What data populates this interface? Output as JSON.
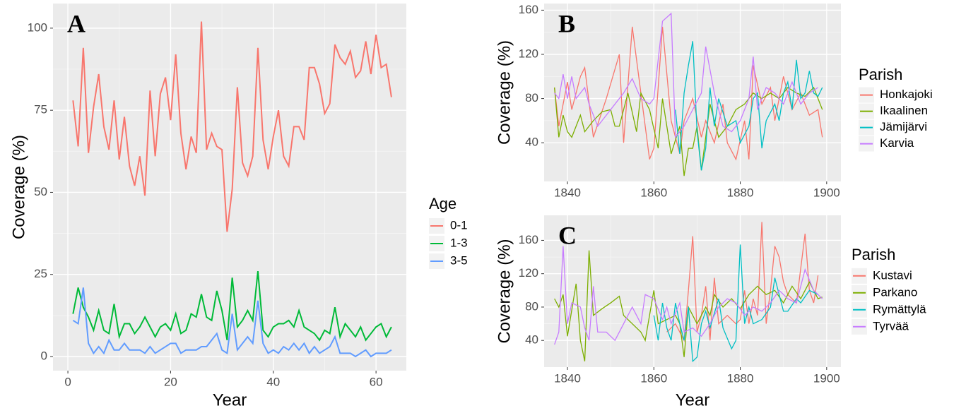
{
  "chart_data": [
    {
      "type": "line",
      "label": "A",
      "x_label": "Year",
      "y_label": "Coverage (%)",
      "legend_title": "Age",
      "grid": true,
      "xlim": [
        -2.9,
        65.9
      ],
      "ylim": [
        -4.3,
        107.5
      ],
      "xticks": [
        0,
        20,
        40,
        60
      ],
      "yticks": [
        0,
        25,
        50,
        75,
        100
      ],
      "x": [
        1,
        2,
        3,
        4,
        5,
        6,
        7,
        8,
        9,
        10,
        11,
        12,
        13,
        14,
        15,
        16,
        17,
        18,
        19,
        20,
        21,
        22,
        23,
        24,
        25,
        26,
        27,
        28,
        29,
        30,
        31,
        32,
        33,
        34,
        35,
        36,
        37,
        38,
        39,
        40,
        41,
        42,
        43,
        44,
        45,
        46,
        47,
        48,
        49,
        50,
        51,
        52,
        53,
        54,
        55,
        56,
        57,
        58,
        59,
        60,
        61,
        62,
        63
      ],
      "series": [
        {
          "name": "0-1",
          "color": "#F8766D",
          "values": [
            78,
            64,
            94,
            62,
            76,
            86,
            70,
            63,
            78,
            60,
            73,
            58,
            52,
            61,
            49,
            81,
            61,
            80,
            85,
            72,
            92,
            68,
            57,
            67,
            62,
            102,
            63,
            68,
            64,
            63,
            38,
            51,
            82,
            59,
            55,
            61,
            94,
            66,
            57,
            67,
            75,
            61,
            58,
            70,
            70,
            66,
            88,
            88,
            83,
            74,
            77,
            95,
            91,
            89,
            93,
            85,
            87,
            96,
            86,
            98,
            88,
            89,
            79
          ]
        },
        {
          "name": "1-3",
          "color": "#00BA38",
          "values": [
            13,
            21,
            15,
            12,
            8,
            14,
            8,
            7,
            16,
            6,
            10,
            10,
            7,
            9,
            12,
            9,
            6,
            9,
            10,
            8,
            13,
            7,
            8,
            13,
            12,
            19,
            12,
            11,
            20,
            14,
            5,
            24,
            9,
            11,
            14,
            11,
            26,
            8,
            6,
            9,
            10,
            10,
            11,
            9,
            14,
            9,
            8,
            7,
            5,
            8,
            7,
            15,
            6,
            10,
            8,
            6,
            9,
            5,
            7,
            9,
            10,
            6,
            9
          ]
        },
        {
          "name": "3-5",
          "color": "#619CFF",
          "values": [
            11,
            10,
            21,
            4,
            1,
            3,
            1,
            5,
            2,
            2,
            4,
            2,
            2,
            2,
            1,
            3,
            1,
            2,
            3,
            4,
            4,
            1,
            2,
            2,
            2,
            3,
            3,
            5,
            7,
            2,
            1,
            13,
            2,
            4,
            6,
            4,
            17,
            4,
            1,
            2,
            1,
            3,
            2,
            4,
            2,
            4,
            1,
            3,
            1,
            2,
            3,
            6,
            1,
            1,
            1,
            0,
            1,
            2,
            0,
            1,
            1,
            1,
            2
          ]
        }
      ]
    },
    {
      "type": "line",
      "label": "B",
      "y_label": "Coverage (%)",
      "legend_title": "Parish",
      "grid": true,
      "xlim": [
        1834.6,
        1903.3
      ],
      "ylim": [
        5,
        166
      ],
      "xticks": [
        1840,
        1860,
        1880,
        1900
      ],
      "yticks": [
        40,
        80,
        120,
        160
      ],
      "series": [
        {
          "name": "Honkajoki",
          "color": "#F8766D",
          "x": [
            1837,
            1838,
            1840,
            1841,
            1843,
            1844,
            1846,
            1849,
            1852,
            1853,
            1855,
            1857,
            1859,
            1860,
            1862,
            1864,
            1866,
            1867,
            1869,
            1871,
            1872,
            1874,
            1876,
            1877,
            1879,
            1881,
            1882,
            1883,
            1885,
            1887,
            1888,
            1890,
            1892,
            1894,
            1896,
            1898,
            1899
          ],
          "values": [
            90,
            55,
            95,
            70,
            100,
            108,
            45,
            80,
            120,
            40,
            145,
            85,
            25,
            35,
            145,
            60,
            30,
            60,
            80,
            45,
            60,
            40,
            75,
            40,
            25,
            60,
            25,
            110,
            75,
            90,
            60,
            100,
            70,
            85,
            65,
            70,
            45
          ]
        },
        {
          "name": "Ikaalinen",
          "color": "#7CAE00",
          "x": [
            1837,
            1838,
            1839,
            1840,
            1841,
            1843,
            1844,
            1846,
            1848,
            1850,
            1851,
            1852,
            1854,
            1856,
            1857,
            1859,
            1861,
            1862,
            1864,
            1866,
            1867,
            1868,
            1869,
            1870,
            1871,
            1873,
            1875,
            1877,
            1879,
            1881,
            1883,
            1885,
            1887,
            1889,
            1891,
            1893,
            1895,
            1897,
            1899
          ],
          "values": [
            90,
            45,
            65,
            50,
            45,
            65,
            50,
            60,
            68,
            70,
            55,
            55,
            85,
            50,
            85,
            70,
            35,
            80,
            30,
            55,
            10,
            35,
            35,
            55,
            15,
            75,
            45,
            55,
            70,
            75,
            85,
            80,
            85,
            80,
            90,
            85,
            82,
            90,
            70
          ]
        },
        {
          "name": "Jämijärvi",
          "color": "#00BFC4",
          "x": [
            1865,
            1866,
            1867,
            1868,
            1869,
            1870,
            1871,
            1872,
            1873,
            1874,
            1875,
            1877,
            1879,
            1880,
            1882,
            1883,
            1884,
            1885,
            1886,
            1888,
            1889,
            1890,
            1891,
            1892,
            1893,
            1894,
            1895,
            1896,
            1897,
            1898,
            1899
          ],
          "values": [
            70,
            30,
            85,
            110,
            132,
            50,
            15,
            35,
            90,
            55,
            80,
            55,
            60,
            40,
            55,
            80,
            85,
            35,
            60,
            75,
            60,
            85,
            95,
            70,
            115,
            80,
            85,
            105,
            85,
            82,
            90
          ]
        },
        {
          "name": "Karvia",
          "color": "#C77CFF",
          "x": [
            1837,
            1838,
            1839,
            1840,
            1841,
            1842,
            1844,
            1845,
            1847,
            1849,
            1851,
            1853,
            1855,
            1857,
            1859,
            1860,
            1862,
            1864,
            1865,
            1867,
            1869,
            1871,
            1872,
            1874,
            1876,
            1878,
            1880,
            1882,
            1883,
            1884,
            1886,
            1888,
            1890,
            1892,
            1894,
            1896,
            1898
          ],
          "values": [
            85,
            80,
            102,
            80,
            100,
            80,
            90,
            75,
            55,
            65,
            75,
            85,
            98,
            80,
            75,
            80,
            150,
            157,
            45,
            55,
            70,
            85,
            127,
            85,
            55,
            50,
            60,
            80,
            118,
            70,
            90,
            85,
            75,
            95,
            75,
            85,
            90
          ]
        }
      ]
    },
    {
      "type": "line",
      "label": "C",
      "x_label": "Year",
      "y_label": "Coverage (%)",
      "legend_title": "Parish",
      "grid": true,
      "xlim": [
        1834.6,
        1903.3
      ],
      "ylim": [
        8,
        190
      ],
      "xticks": [
        1840,
        1860,
        1880,
        1900
      ],
      "yticks": [
        40,
        80,
        120,
        160
      ],
      "series": [
        {
          "name": "Kustavi",
          "color": "#F8766D",
          "x": [
            1863,
            1865,
            1867,
            1868,
            1869,
            1870,
            1871,
            1872,
            1873,
            1874,
            1875,
            1877,
            1879,
            1880,
            1881,
            1882,
            1883,
            1884,
            1885,
            1886,
            1887,
            1888,
            1889,
            1890,
            1891,
            1893,
            1895,
            1896,
            1897,
            1898
          ],
          "values": [
            50,
            60,
            40,
            100,
            165,
            50,
            70,
            105,
            40,
            115,
            60,
            70,
            60,
            65,
            100,
            60,
            90,
            70,
            182,
            60,
            100,
            153,
            140,
            110,
            95,
            85,
            168,
            100,
            85,
            118
          ]
        },
        {
          "name": "Parkano",
          "color": "#7CAE00",
          "x": [
            1837,
            1838,
            1839,
            1840,
            1842,
            1843,
            1844,
            1845,
            1846,
            1848,
            1850,
            1852,
            1853,
            1855,
            1857,
            1858,
            1860,
            1861,
            1863,
            1865,
            1866,
            1867,
            1868,
            1870,
            1872,
            1873,
            1874,
            1876,
            1878,
            1880,
            1882,
            1884,
            1886,
            1888,
            1890,
            1892,
            1894,
            1896,
            1898,
            1899
          ],
          "values": [
            90,
            80,
            95,
            45,
            108,
            40,
            15,
            148,
            70,
            78,
            85,
            93,
            70,
            60,
            50,
            40,
            100,
            60,
            65,
            70,
            60,
            20,
            80,
            60,
            80,
            70,
            95,
            80,
            90,
            78,
            95,
            105,
            95,
            100,
            85,
            105,
            90,
            110,
            90,
            92
          ]
        },
        {
          "name": "Rymättylä",
          "color": "#00BFC4",
          "x": [
            1860,
            1861,
            1862,
            1863,
            1864,
            1865,
            1866,
            1867,
            1868,
            1869,
            1870,
            1871,
            1872,
            1873,
            1875,
            1876,
            1878,
            1879,
            1880,
            1881,
            1882,
            1883,
            1885,
            1887,
            1888,
            1889,
            1890,
            1891,
            1893,
            1894,
            1896,
            1898
          ],
          "values": [
            70,
            40,
            85,
            55,
            40,
            85,
            60,
            40,
            80,
            15,
            20,
            60,
            75,
            55,
            90,
            55,
            30,
            40,
            155,
            60,
            80,
            60,
            65,
            80,
            115,
            95,
            75,
            75,
            90,
            85,
            100,
            95
          ]
        },
        {
          "name": "Tyrvää",
          "color": "#C77CFF",
          "x": [
            1837,
            1838,
            1839,
            1840,
            1841,
            1843,
            1844,
            1845,
            1846,
            1847,
            1849,
            1851,
            1853,
            1855,
            1857,
            1858,
            1860,
            1862,
            1863,
            1864,
            1866,
            1867,
            1869,
            1871,
            1873,
            1875,
            1877,
            1879,
            1881,
            1883,
            1885,
            1887,
            1889,
            1891,
            1893,
            1895,
            1897,
            1899
          ],
          "values": [
            35,
            50,
            153,
            60,
            85,
            80,
            55,
            40,
            105,
            50,
            50,
            40,
            60,
            80,
            60,
            95,
            90,
            65,
            80,
            60,
            85,
            50,
            55,
            45,
            60,
            80,
            90,
            85,
            70,
            80,
            75,
            85,
            100,
            90,
            85,
            125,
            100,
            90
          ]
        }
      ]
    }
  ]
}
